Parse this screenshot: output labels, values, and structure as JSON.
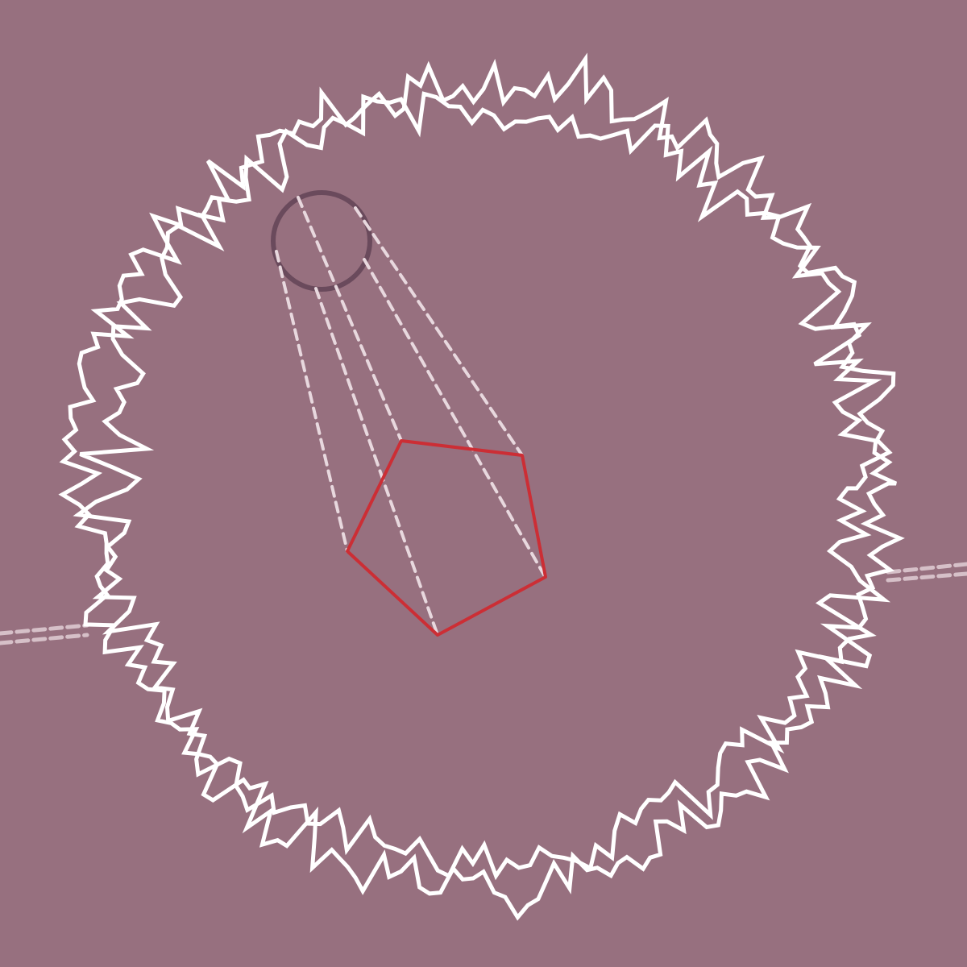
{
  "colors": {
    "background": "#97707f",
    "jagged_ring": "#ffffff",
    "pentagon": "#cc2e35",
    "small_circle": "#6a4a5c",
    "dashed_lines": "#e8d8de",
    "horizon_line": "#d6c0c8"
  },
  "shapes": {
    "jagged_ring": "ring",
    "small_circle": "circle",
    "pentagon": "pentagon",
    "projection_lines": "dashed",
    "horizon_lines": "dashed"
  }
}
